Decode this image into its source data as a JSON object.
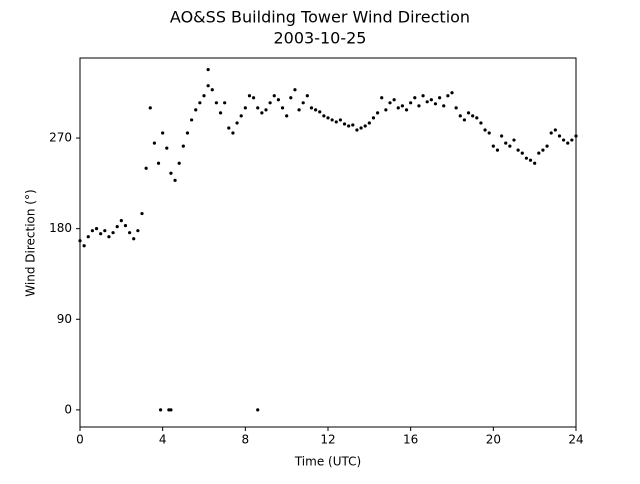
{
  "chart_data": {
    "type": "scatter",
    "title": "AO&SS Building Tower Wind Direction",
    "subtitle": "2003-10-25",
    "x_label": "Time (UTC)",
    "y_label": "Wind Direction (°)",
    "color": "#000000",
    "xlim": [
      0,
      24
    ],
    "xticks": [
      0,
      4,
      8,
      12,
      16,
      20,
      24
    ],
    "ylim": [
      -17,
      349.5
    ],
    "yticks": [
      0,
      90,
      180,
      270
    ],
    "x": [
      0,
      0.2,
      0.4,
      0.6,
      0.8,
      1.0,
      1.2,
      1.4,
      1.6,
      1.8,
      2.0,
      2.2,
      2.4,
      2.6,
      2.8,
      3.0,
      3.2,
      3.4,
      3.6,
      3.8,
      4.0,
      4.2,
      4.4,
      4.6,
      4.8,
      5.0,
      5.2,
      5.4,
      5.6,
      5.8,
      6.0,
      6.2,
      6.4,
      6.6,
      6.8,
      7.0,
      7.2,
      7.4,
      7.6,
      7.8,
      8.0,
      8.2,
      8.4,
      8.6,
      8.8,
      9.0,
      9.2,
      9.4,
      9.6,
      9.8,
      10.0,
      10.2,
      10.4,
      10.6,
      10.8,
      11.0,
      11.2,
      11.4,
      11.6,
      11.8,
      12.0,
      12.2,
      12.4,
      12.6,
      12.8,
      13.0,
      13.2,
      13.4,
      13.6,
      13.8,
      14.0,
      14.2,
      14.4,
      14.6,
      14.8,
      15.0,
      15.2,
      15.4,
      15.6,
      15.8,
      16.0,
      16.2,
      16.4,
      16.6,
      16.8,
      17.0,
      17.2,
      17.4,
      17.6,
      17.8,
      18.0,
      18.2,
      18.4,
      18.6,
      18.8,
      19.0,
      19.2,
      19.4,
      19.6,
      19.8,
      20.0,
      20.2,
      20.4,
      20.6,
      20.8,
      21.0,
      21.2,
      21.4,
      21.6,
      21.8,
      22.0,
      22.2,
      22.4,
      22.6,
      22.8,
      23.0,
      23.2,
      23.4,
      23.6,
      23.8,
      24.0,
      3.9,
      4.3,
      4.4,
      8.6,
      6.2
    ],
    "values": [
      168,
      163,
      172,
      178,
      180,
      175,
      178,
      172,
      176,
      182,
      188,
      183,
      176,
      170,
      178,
      195,
      240,
      300,
      265,
      245,
      275,
      260,
      235,
      228,
      245,
      262,
      275,
      288,
      298,
      305,
      312,
      322,
      318,
      305,
      295,
      305,
      280,
      275,
      285,
      292,
      300,
      312,
      310,
      300,
      295,
      298,
      305,
      312,
      308,
      300,
      292,
      310,
      318,
      298,
      305,
      312,
      300,
      298,
      296,
      292,
      290,
      288,
      286,
      288,
      284,
      282,
      283,
      278,
      280,
      282,
      285,
      290,
      295,
      310,
      298,
      305,
      308,
      300,
      302,
      298,
      305,
      310,
      302,
      312,
      306,
      308,
      304,
      310,
      302,
      312,
      315,
      300,
      292,
      288,
      295,
      292,
      290,
      285,
      278,
      275,
      262,
      258,
      272,
      265,
      262,
      268,
      258,
      255,
      250,
      248,
      245,
      255,
      258,
      262,
      275,
      278,
      272,
      268,
      265,
      268,
      272,
      0,
      0,
      0,
      0,
      338
    ]
  }
}
